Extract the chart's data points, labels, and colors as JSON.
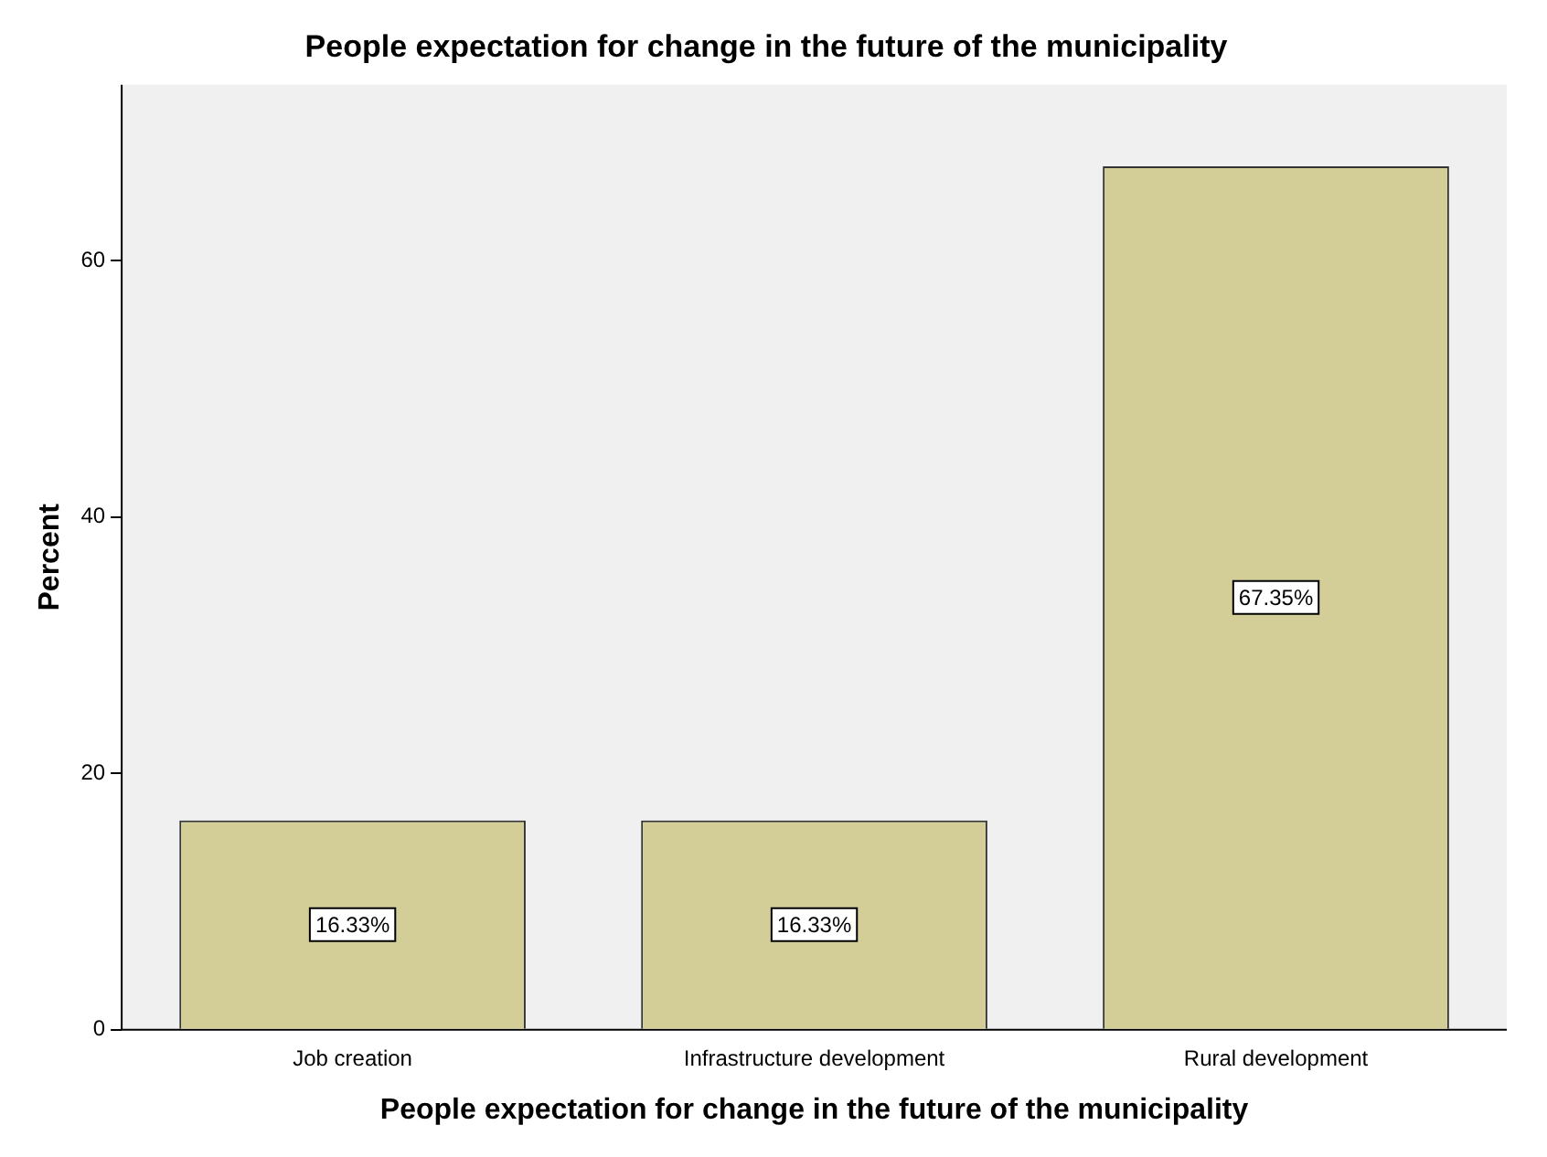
{
  "chart_data": {
    "type": "bar",
    "title": "People expectation for change in the future of the municipality",
    "xlabel": "People expectation for change in the future of the municipality",
    "ylabel": "Percent",
    "categories": [
      "Job creation",
      "Infrastructure development",
      "Rural development"
    ],
    "values": [
      16.33,
      16.33,
      67.35
    ],
    "value_labels": [
      "16.33%",
      "16.33%",
      "67.35%"
    ],
    "color": "#d3ce97",
    "ylim": [
      0,
      73.7
    ],
    "yticks": [
      0,
      20,
      40,
      60
    ],
    "grid": false,
    "legend": false
  }
}
